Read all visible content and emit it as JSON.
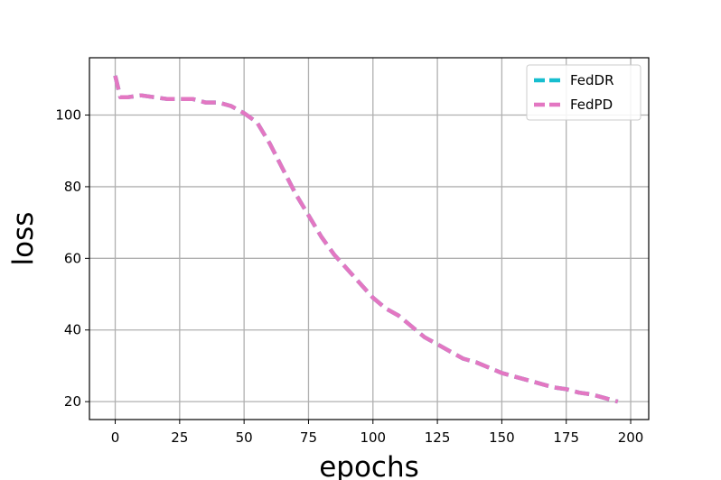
{
  "chart_data": {
    "type": "line",
    "title": "",
    "xlabel": "epochs",
    "ylabel": "loss",
    "xlim": [
      -10,
      207
    ],
    "ylim": [
      15,
      116
    ],
    "xticks": [
      0,
      25,
      50,
      75,
      100,
      125,
      150,
      175,
      200
    ],
    "yticks": [
      20,
      40,
      60,
      80,
      100
    ],
    "grid": true,
    "legend_position": "top-right",
    "series": [
      {
        "name": "FedDR",
        "color": "#17becf",
        "style": "dashed",
        "x": [
          0,
          2,
          5,
          10,
          15,
          20,
          25,
          30,
          35,
          40,
          45,
          50,
          55,
          60,
          65,
          70,
          75,
          80,
          85,
          90,
          95,
          100,
          105,
          110,
          115,
          120,
          125,
          130,
          135,
          140,
          145,
          150,
          155,
          160,
          165,
          170,
          175,
          180,
          185,
          190,
          195
        ],
        "y": [
          111,
          105,
          105,
          105.5,
          105,
          104.5,
          104.5,
          104.5,
          103.5,
          103.5,
          102.5,
          100.5,
          98,
          92,
          85,
          78,
          72,
          66,
          61,
          57,
          53,
          49,
          46,
          44,
          41,
          38,
          36,
          34,
          32,
          31,
          29.5,
          28,
          27,
          26,
          25,
          24,
          23.5,
          22.5,
          22,
          21,
          20
        ]
      },
      {
        "name": "FedPD",
        "color": "#e377c2",
        "style": "dashed",
        "x": [
          0,
          2,
          5,
          10,
          15,
          20,
          25,
          30,
          35,
          40,
          45,
          50,
          55,
          60,
          65,
          70,
          75,
          80,
          85,
          90,
          95,
          100,
          105,
          110,
          115,
          120,
          125,
          130,
          135,
          140,
          145,
          150,
          155,
          160,
          165,
          170,
          175,
          180,
          185,
          190,
          195
        ],
        "y": [
          111,
          105,
          105,
          105.5,
          105,
          104.5,
          104.5,
          104.5,
          103.5,
          103.5,
          102.5,
          100.5,
          98,
          92,
          85,
          78,
          72,
          66,
          61,
          57,
          53,
          49,
          46,
          44,
          41,
          38,
          36,
          34,
          32,
          31,
          29.5,
          28,
          27,
          26,
          25,
          24,
          23.5,
          22.5,
          22,
          21,
          20
        ]
      }
    ]
  }
}
